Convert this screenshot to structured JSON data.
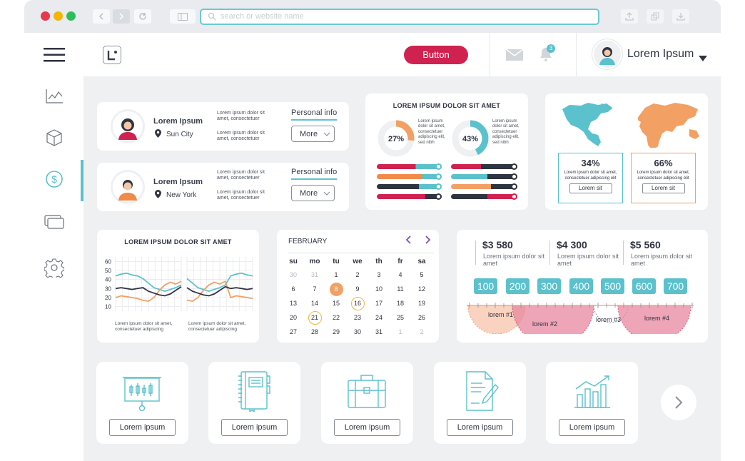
{
  "browser": {
    "search_placeholder": "search or website name"
  },
  "header": {
    "button_label": "Button",
    "notification_count": "3",
    "user_name": "Lorem Ipsum"
  },
  "profiles": [
    {
      "name": "Lorem Ipsum",
      "location": "Sun City",
      "text1": "Lorem ipsum dolor sit amet, consectetuer",
      "text2": "Lorem ipsum dolor sit amet, consectetuer",
      "link": "Personal info",
      "more": "More"
    },
    {
      "name": "Lorem Ipsum",
      "location": "New York",
      "text1": "Lorem ipsum dolor sit amet, consectetuer",
      "text2": "Lorem ipsum dolor sit amet, consectetuer",
      "link": "Personal info",
      "more": "More"
    }
  ],
  "donuts": {
    "title": "LOREM IPSUM DOLOR SIT AMET",
    "items": [
      {
        "pct": "27%",
        "value": 0.27,
        "color": "#f2a064",
        "text": "Lorem ipsum dolor sit amet, consectetuer adipiscing elit, sed nibh"
      },
      {
        "pct": "43%",
        "value": 0.43,
        "color": "#5bc1cc",
        "text": "Lorem ipsum dolor sit amet, consectetuer adipiscing elit, sed nibh"
      }
    ]
  },
  "map": {
    "stats": [
      {
        "pct": "34%",
        "text": "Lorem ipsum dolor sit amet, consectetuer adipiscing elit",
        "btn": "Lorem sit",
        "color": "#5bc1cc"
      },
      {
        "pct": "66%",
        "text": "Lorem ipsum dolor sit amet, consectetuer adipiscing elit",
        "btn": "Lorem sit",
        "color": "#f2a064"
      }
    ]
  },
  "chart_data": {
    "type": "line",
    "title": "LOREM IPSUM DOLOR SIT AMET",
    "y_ticks": [
      60,
      50,
      40,
      30,
      20,
      10
    ],
    "captions": [
      "Lorem ipsum dolor sit amet, consectetuer adipiscing",
      "Lorem ipsum dolor sit amet, consectetuer adipiscing"
    ],
    "series": [
      {
        "color": "#5bc1cc",
        "values": [
          44,
          46,
          47,
          45,
          44,
          41,
          36,
          31,
          29,
          27,
          29,
          31,
          34
        ]
      },
      {
        "color": "#f2a064",
        "values": [
          20,
          22,
          21,
          20,
          19,
          17,
          16,
          20,
          28,
          34,
          37,
          35,
          38
        ]
      },
      {
        "color": "#2f3441",
        "values": [
          30,
          31,
          30,
          29,
          30,
          31,
          27,
          25,
          23,
          22,
          24,
          28,
          32
        ]
      }
    ]
  },
  "calendar": {
    "month": "FEBRUARY",
    "days": [
      "su",
      "mo",
      "tu",
      "we",
      "th",
      "fr",
      "sa"
    ],
    "weeks": [
      [
        "30",
        "31",
        "1",
        "2",
        "3",
        "4",
        "5"
      ],
      [
        "6",
        "7",
        "8",
        "9",
        "10",
        "11",
        "12"
      ],
      [
        "13",
        "14",
        "15",
        "16",
        "17",
        "18",
        "19"
      ],
      [
        "20",
        "21",
        "22",
        "23",
        "24",
        "25",
        "26"
      ],
      [
        "27",
        "28",
        "29",
        "30",
        "31",
        "1",
        "2"
      ]
    ]
  },
  "prices": [
    {
      "value": "$3 580",
      "text": "Lorem ipsum dolor sit amet"
    },
    {
      "value": "$4 300",
      "text": "Lorem ipsum dolor sit amet"
    },
    {
      "value": "$5 560",
      "text": "Lorem ipsum dolor sit amet"
    }
  ],
  "scale": [
    "100",
    "200",
    "300",
    "400",
    "500",
    "600",
    "700"
  ],
  "lorems": [
    "lorem #1",
    "lorem #2",
    "lorem #3",
    "lorem #4"
  ],
  "tiles": [
    {
      "label": "Lorem ipsum",
      "icon": "presentation-chart-icon"
    },
    {
      "label": "Lorem ipsum",
      "icon": "notebook-icon"
    },
    {
      "label": "Lorem ipsum",
      "icon": "briefcase-icon"
    },
    {
      "label": "Lorem ipsum",
      "icon": "document-pen-icon"
    },
    {
      "label": "Lorem ipsum",
      "icon": "growth-chart-icon"
    }
  ]
}
